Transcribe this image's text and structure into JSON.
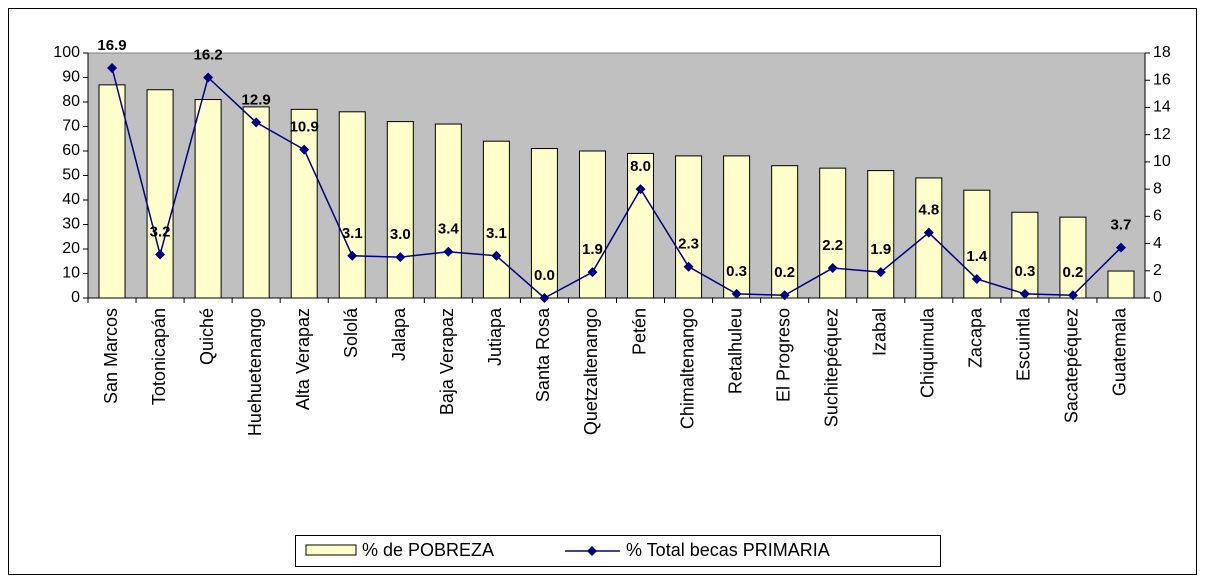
{
  "chart_data": {
    "type": "bar",
    "categories": [
      "San Marcos",
      "Totonicapán",
      "Quiché",
      "Huehuetenango",
      "Alta Verapaz",
      "Sololá",
      "Jalapa",
      "Baja Verapaz",
      "Jutiapa",
      "Santa Rosa",
      "Quetzaltenango",
      "Petén",
      "Chimaltenango",
      "Retalhuleu",
      "El Progreso",
      "Suchitepéquez",
      "Izabal",
      "Chiquimula",
      "Zacapa",
      "Escuintla",
      "Sacatepéquez",
      "Guatemala"
    ],
    "series": [
      {
        "name": "% de POBREZA",
        "type": "bar",
        "color": "#ffffcc",
        "values": [
          87,
          85,
          81,
          78,
          77,
          76,
          72,
          71,
          64,
          61,
          60,
          59,
          58,
          58,
          54,
          53,
          52,
          49,
          44,
          35,
          33,
          11
        ]
      },
      {
        "name": "% Total becas PRIMARIA",
        "type": "line",
        "axis": "y2",
        "color": "#000080",
        "values": [
          16.9,
          3.2,
          16.2,
          12.9,
          10.9,
          3.1,
          3.0,
          3.4,
          3.1,
          0.0,
          1.9,
          8.0,
          2.3,
          0.3,
          0.2,
          2.2,
          1.9,
          4.8,
          1.4,
          0.3,
          0.2,
          3.7
        ],
        "value_labels": [
          "16.9",
          "3.2",
          "16.2",
          "12.9",
          "10.9",
          "3.1",
          "3.0",
          "3.4",
          "3.1",
          "0.0",
          "1.9",
          "8.0",
          "2.3",
          "0.3",
          "0.2",
          "2.2",
          "1.9",
          "4.8",
          "1.4",
          "0.3",
          "0.2",
          "3.7"
        ]
      }
    ],
    "ylim": [
      0,
      100
    ],
    "yticks": [
      0,
      10,
      20,
      30,
      40,
      50,
      60,
      70,
      80,
      90,
      100
    ],
    "y2lim": [
      0,
      18
    ],
    "y2ticks": [
      0,
      2,
      4,
      6,
      8,
      10,
      12,
      14,
      16,
      18
    ],
    "legend": "bottom",
    "plot_background": "#c0c0c0"
  }
}
